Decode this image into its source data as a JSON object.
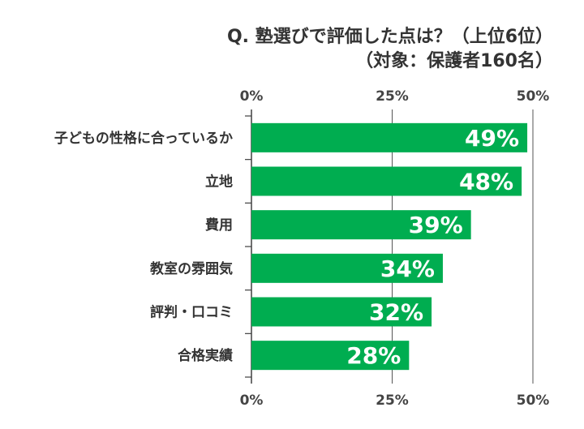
{
  "chart_data": {
    "type": "bar",
    "orientation": "horizontal",
    "title": "Q. 塾選びで評価した点は？（上位6位）",
    "subtitle": "（対象：保護者160名）",
    "categories": [
      "子どもの性格に合っているか",
      "立地",
      "費用",
      "教室の雰囲気",
      "評判・口コミ",
      "合格実績"
    ],
    "values": [
      49,
      48,
      39,
      34,
      32,
      28
    ],
    "value_labels": [
      "49%",
      "48%",
      "39%",
      "34%",
      "32%",
      "28%"
    ],
    "xlim": [
      0,
      50
    ],
    "ticks": [
      0,
      25,
      50
    ],
    "tick_labels": [
      "0%",
      "25%",
      "50%"
    ],
    "grid": true,
    "colors": {
      "bar": "#00ad50",
      "axis": "#404040",
      "text": "#333333"
    }
  }
}
